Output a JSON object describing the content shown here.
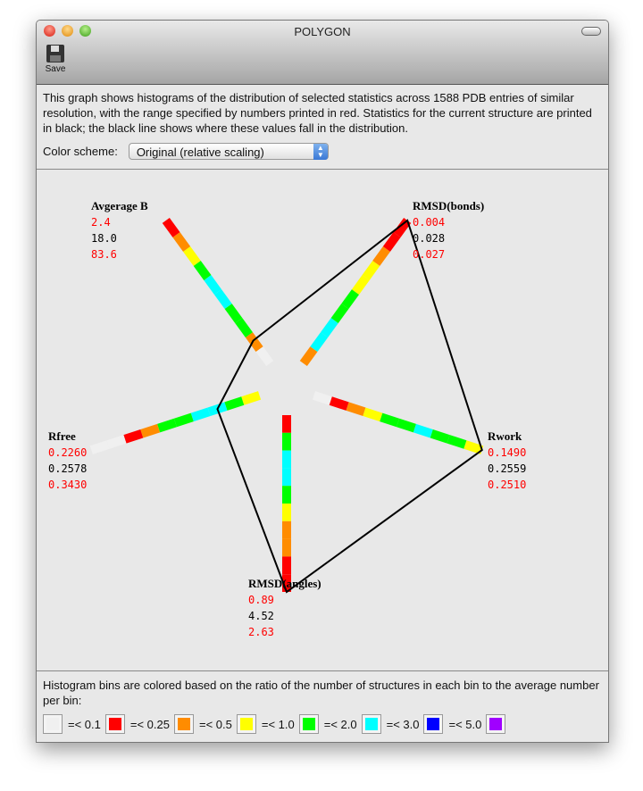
{
  "window": {
    "title": "POLYGON",
    "toolbar": {
      "save_label": "Save"
    }
  },
  "description": "This graph shows histograms of the distribution of selected statistics across 1588 PDB entries of similar resolution, with the range specified by numbers printed in red.  Statistics for the current structure are printed in black; the black line shows where these values fall in the distribution.",
  "color_scheme": {
    "label": "Color scheme:",
    "value": "Original (relative scaling)"
  },
  "legend": {
    "text": "Histogram bins are colored based on the ratio of the number of structures in each bin to the average number per bin:",
    "items": [
      {
        "color": "#f0f0f0",
        "label": "=< 0.1"
      },
      {
        "color": "#ff0000",
        "label": "=< 0.25"
      },
      {
        "color": "#ff8c00",
        "label": "=< 0.5"
      },
      {
        "color": "#ffff00",
        "label": "=< 1.0"
      },
      {
        "color": "#00ff00",
        "label": "=< 2.0"
      },
      {
        "color": "#00ffff",
        "label": "=< 3.0"
      },
      {
        "color": "#0000ff",
        "label": "=< 5.0"
      },
      {
        "color": "#a000ff",
        "label": ""
      }
    ]
  },
  "chart_data": {
    "type": "radar-histogram",
    "bin_colors": {
      "w": "#f0f0f0",
      "r": "#ff0000",
      "o": "#ff8c00",
      "y": "#ffff00",
      "g": "#00ff00",
      "c": "#00ffff"
    },
    "axes": [
      {
        "name": "Avgerage B",
        "min": "2.4",
        "current": "18.0",
        "max": "83.6",
        "bins_inner_to_outer": [
          "w",
          "o",
          "g",
          "g",
          "c",
          "c",
          "g",
          "y",
          "o",
          "r"
        ],
        "marker_fraction": 0.16
      },
      {
        "name": "RMSD(bonds)",
        "min": "0.004",
        "current": "0.028",
        "max": "0.027",
        "bins_inner_to_outer": [
          "o",
          "c",
          "c",
          "g",
          "g",
          "y",
          "y",
          "o",
          "r",
          "r"
        ],
        "marker_fraction": 1.0
      },
      {
        "name": "Rwork",
        "min": "0.1490",
        "current": "0.2559",
        "max": "0.2510",
        "bins_inner_to_outer": [
          "w",
          "r",
          "o",
          "y",
          "g",
          "g",
          "c",
          "g",
          "g",
          "y"
        ],
        "marker_fraction": 1.0
      },
      {
        "name": "RMSD(angles)",
        "min": "0.89",
        "current": "4.52",
        "max": "2.63",
        "bins_inner_to_outer": [
          "r",
          "g",
          "c",
          "c",
          "g",
          "y",
          "o",
          "o",
          "r",
          "r"
        ],
        "marker_fraction": 1.0
      },
      {
        "name": "Rfree",
        "min": "0.2260",
        "current": "0.2578",
        "max": "0.3430",
        "bins_inner_to_outer": [
          "y",
          "g",
          "c",
          "c",
          "g",
          "g",
          "o",
          "r",
          "w",
          "w"
        ],
        "marker_fraction": 0.25
      }
    ]
  }
}
